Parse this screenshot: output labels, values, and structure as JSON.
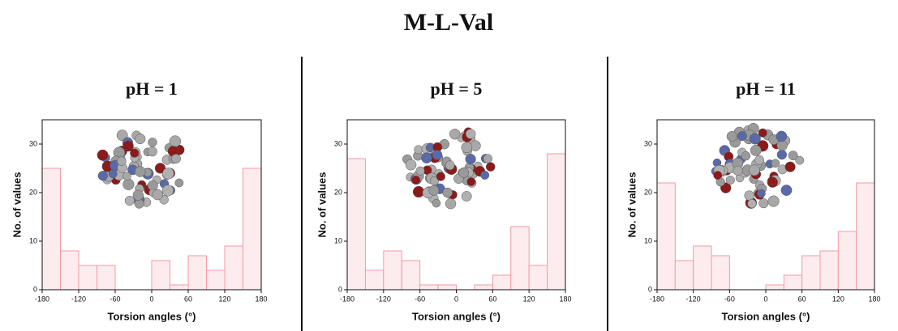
{
  "title": "M-L-Val",
  "chart_data": [
    {
      "type": "histogram",
      "title": "pH = 1",
      "xlabel": "Torsion angles (°)",
      "ylabel": "No. of values",
      "bins": [
        -180,
        -150,
        -120,
        -90,
        -60,
        -30,
        0,
        30,
        60,
        90,
        120,
        150,
        180
      ],
      "values": [
        25,
        8,
        5,
        5,
        0,
        0,
        6,
        1,
        7,
        4,
        9,
        25
      ],
      "color": "#f29aa3",
      "xlim": [
        -180,
        180
      ],
      "ylim": [
        0,
        35
      ],
      "xticks": [
        -180,
        -120,
        -60,
        0,
        60,
        120,
        180
      ],
      "yticks": [
        0,
        10,
        20,
        30
      ]
    },
    {
      "type": "histogram",
      "title": "pH = 5",
      "xlabel": "Torsion angles (°)",
      "ylabel": "No. of values",
      "bins": [
        -180,
        -150,
        -120,
        -90,
        -60,
        -30,
        0,
        30,
        60,
        90,
        120,
        150,
        180
      ],
      "values": [
        27,
        4,
        8,
        6,
        1,
        1,
        0,
        1,
        3,
        13,
        5,
        28
      ],
      "color": "#f29aa3",
      "xlim": [
        -180,
        180
      ],
      "ylim": [
        0,
        35
      ],
      "xticks": [
        -180,
        -120,
        -60,
        0,
        60,
        120,
        180
      ],
      "yticks": [
        0,
        10,
        20,
        30
      ]
    },
    {
      "type": "histogram",
      "title": "pH = 11",
      "xlabel": "Torsion angles (°)",
      "ylabel": "No. of values",
      "bins": [
        -180,
        -150,
        -120,
        -90,
        -60,
        -30,
        0,
        30,
        60,
        90,
        120,
        150,
        180
      ],
      "values": [
        22,
        6,
        9,
        7,
        0,
        0,
        1,
        3,
        7,
        8,
        12,
        22
      ],
      "color": "#f29aa3",
      "xlim": [
        -180,
        180
      ],
      "ylim": [
        0,
        35
      ],
      "xticks": [
        -180,
        -120,
        -60,
        0,
        60,
        120,
        180
      ],
      "yticks": [
        0,
        10,
        20,
        30
      ]
    }
  ]
}
